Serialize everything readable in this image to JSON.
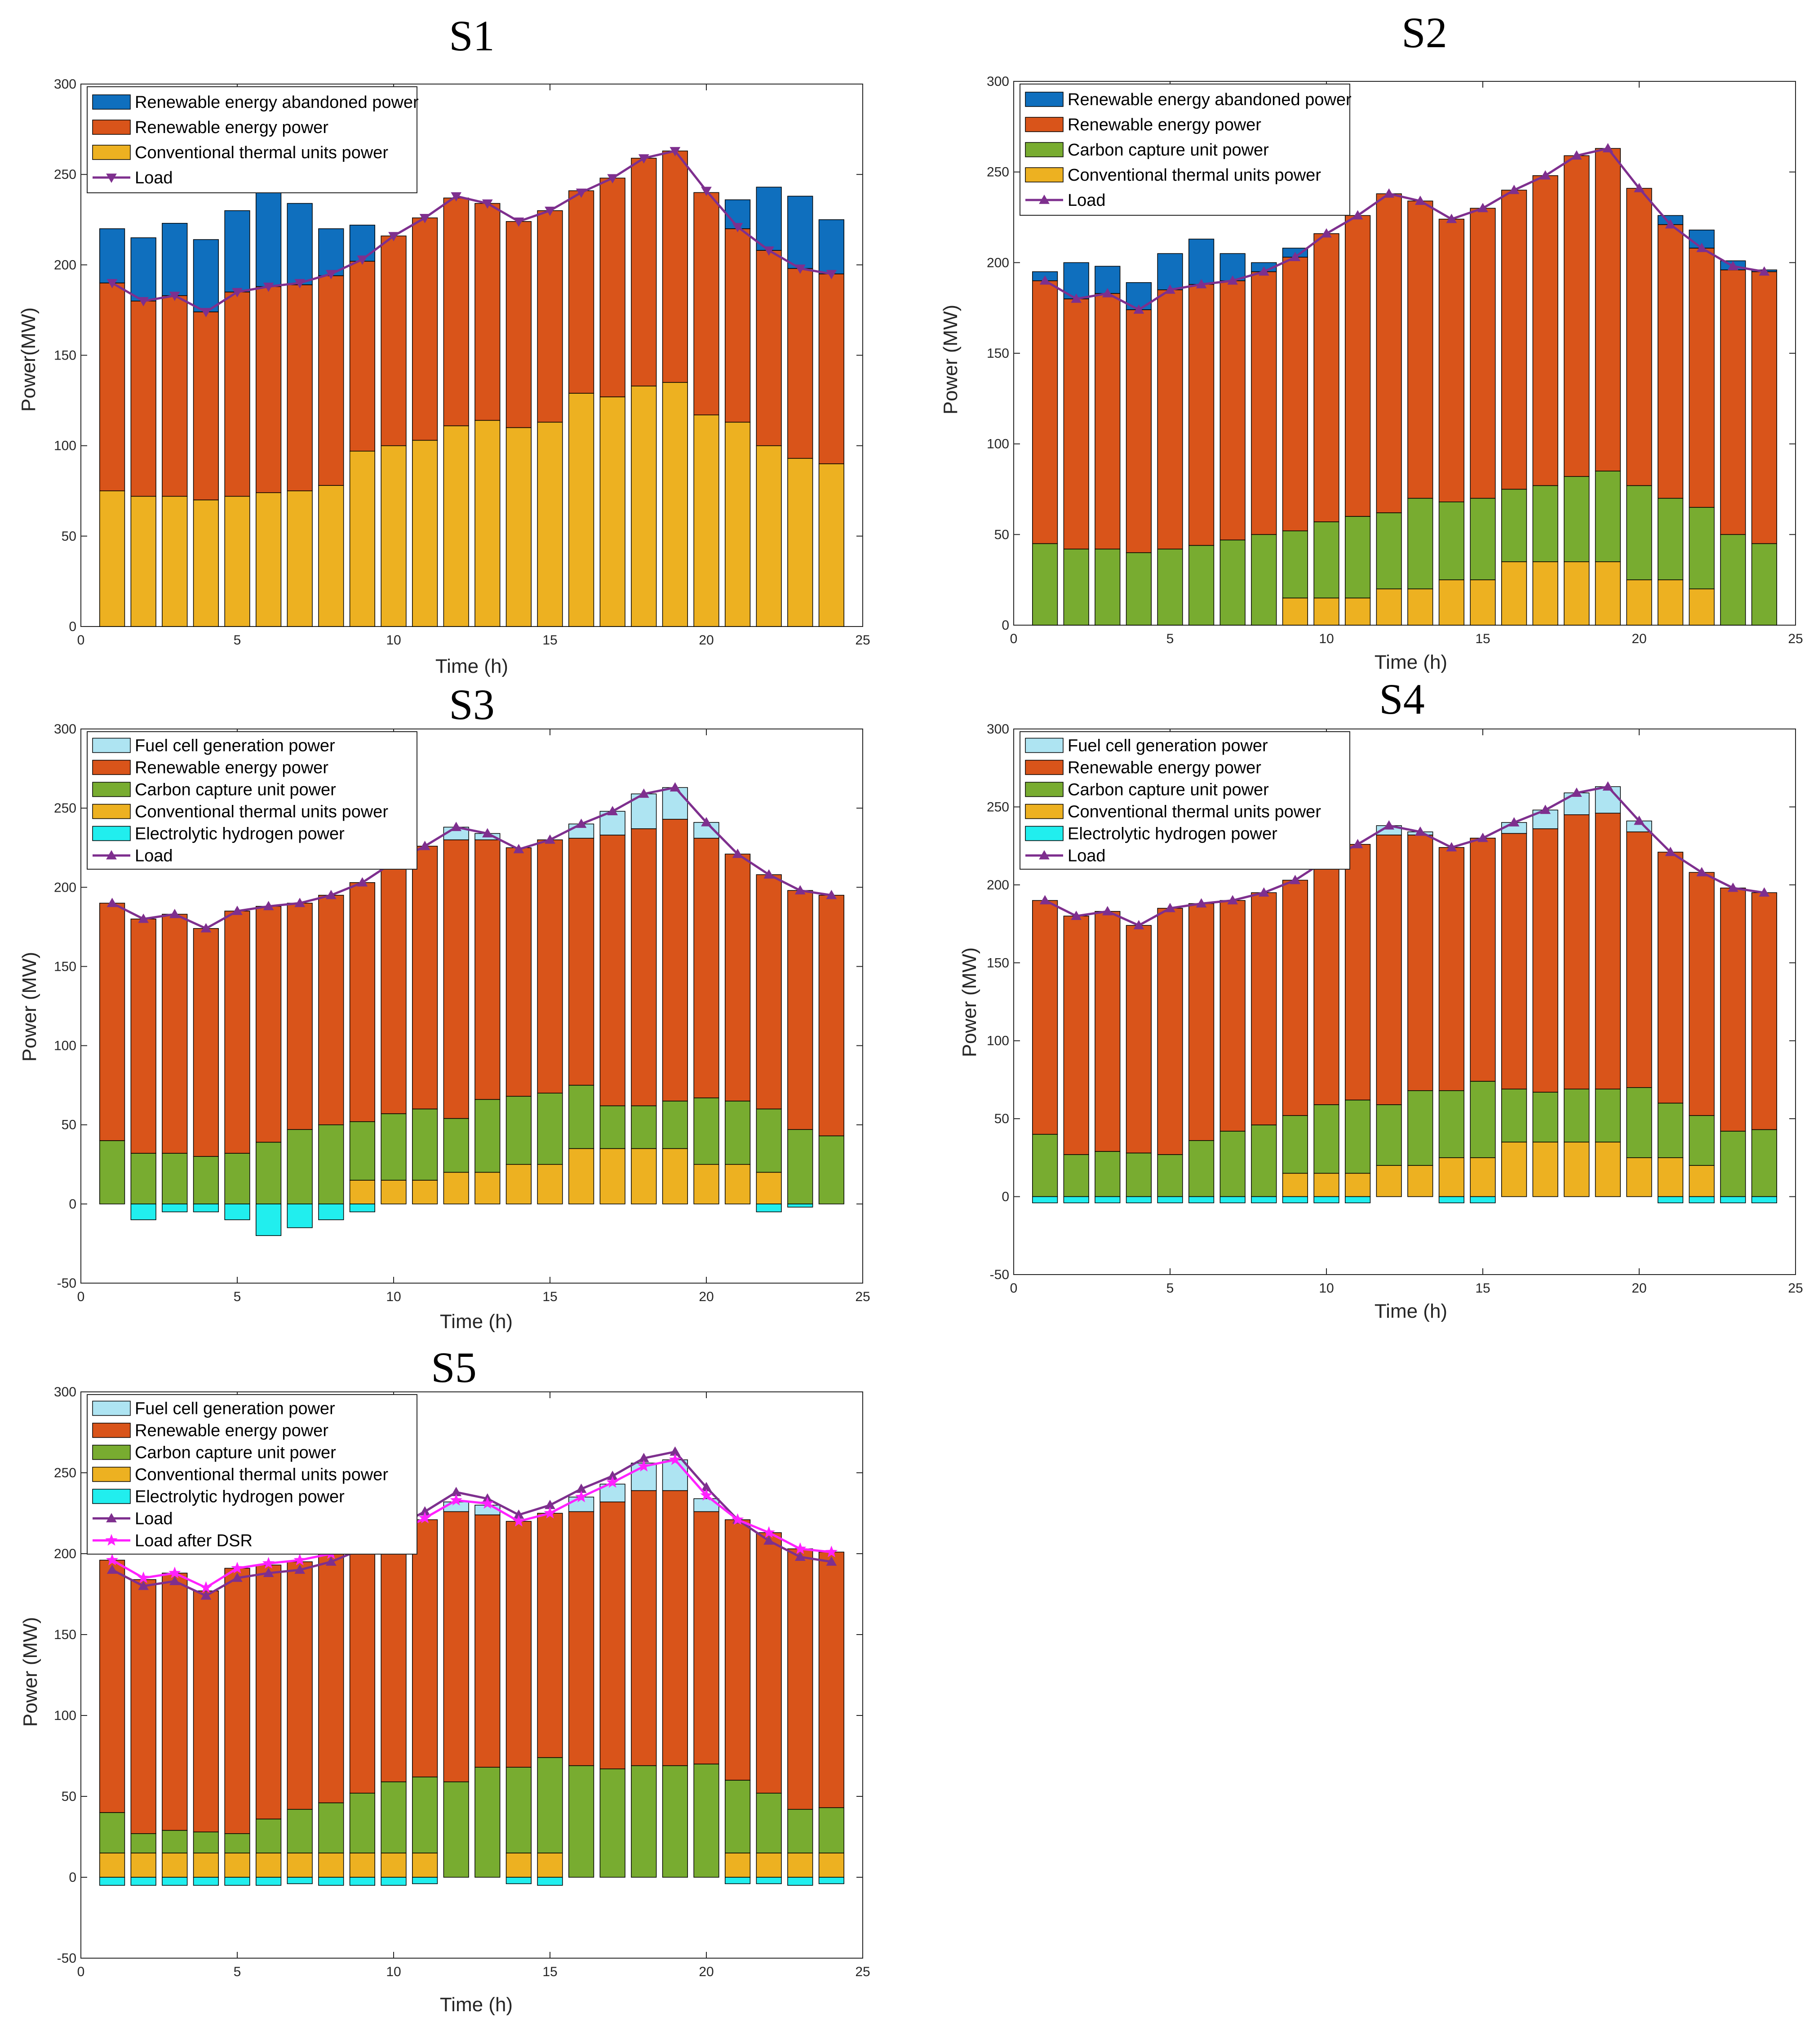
{
  "colors": {
    "abandoned": "#0f6fbe",
    "renewable": "#d9541a",
    "carbon": "#78ac30",
    "thermal": "#edb121",
    "fuelcell": "#aee4f2",
    "electro": "#21eeee",
    "load": "#7e2f8e",
    "dsr": "#ff21ff"
  },
  "chart_data": [
    {
      "type": "bar",
      "title": "S1",
      "xlabel": "Time (h)",
      "ylabel": "Power(MW)",
      "xlim": [
        0,
        25
      ],
      "ylim": [
        0,
        300
      ],
      "xticks": [
        0,
        5,
        10,
        15,
        20,
        25
      ],
      "yticks": [
        0,
        50,
        100,
        150,
        200,
        250,
        300
      ],
      "x": [
        1,
        2,
        3,
        4,
        5,
        6,
        7,
        8,
        9,
        10,
        11,
        12,
        13,
        14,
        15,
        16,
        17,
        18,
        19,
        20,
        21,
        22,
        23,
        24
      ],
      "series": [
        {
          "key": "thermal",
          "name": "Conventional thermal units power",
          "values": [
            75,
            72,
            72,
            70,
            72,
            74,
            75,
            78,
            97,
            100,
            103,
            111,
            114,
            110,
            113,
            129,
            127,
            133,
            135,
            117,
            113,
            100,
            93,
            90
          ]
        },
        {
          "key": "renewable",
          "name": "Renewable energy power",
          "values": [
            115,
            108,
            111,
            104,
            113,
            114,
            114,
            116,
            105,
            116,
            123,
            126,
            120,
            114,
            117,
            112,
            121,
            126,
            128,
            123,
            107,
            108,
            105,
            105
          ]
        },
        {
          "key": "abandoned",
          "name": "Renewable energy abandoned power",
          "values": [
            30,
            35,
            40,
            40,
            45,
            52,
            45,
            26,
            20,
            0,
            0,
            0,
            0,
            0,
            0,
            0,
            0,
            0,
            0,
            0,
            16,
            35,
            40,
            30
          ]
        }
      ],
      "lines": [
        {
          "key": "load",
          "name": "Load",
          "marker": "tri-down",
          "values": [
            190,
            180,
            183,
            174,
            185,
            188,
            190,
            195,
            203,
            216,
            226,
            238,
            234,
            224,
            230,
            240,
            248,
            259,
            263,
            241,
            221,
            208,
            198,
            195
          ]
        }
      ],
      "legend": [
        "abandoned",
        "renewable",
        "thermal",
        "load"
      ]
    },
    {
      "type": "bar",
      "title": "S2",
      "xlabel": "Time (h)",
      "ylabel": "Power (MW)",
      "xlim": [
        0,
        25
      ],
      "ylim": [
        0,
        300
      ],
      "xticks": [
        0,
        5,
        10,
        15,
        20,
        25
      ],
      "yticks": [
        0,
        50,
        100,
        150,
        200,
        250,
        300
      ],
      "x": [
        1,
        2,
        3,
        4,
        5,
        6,
        7,
        8,
        9,
        10,
        11,
        12,
        13,
        14,
        15,
        16,
        17,
        18,
        19,
        20,
        21,
        22,
        23,
        24
      ],
      "series": [
        {
          "key": "thermal",
          "name": "Conventional thermal units power",
          "values": [
            0,
            0,
            0,
            0,
            0,
            0,
            0,
            0,
            15,
            15,
            15,
            20,
            20,
            25,
            25,
            35,
            35,
            35,
            35,
            25,
            25,
            20,
            0,
            0
          ]
        },
        {
          "key": "carbon",
          "name": "Carbon capture unit power",
          "values": [
            45,
            42,
            42,
            40,
            42,
            44,
            47,
            50,
            37,
            42,
            45,
            42,
            50,
            43,
            45,
            40,
            42,
            47,
            50,
            52,
            45,
            45,
            50,
            45
          ]
        },
        {
          "key": "renewable",
          "name": "Renewable energy power",
          "values": [
            145,
            138,
            141,
            134,
            143,
            144,
            143,
            145,
            151,
            159,
            166,
            176,
            164,
            156,
            160,
            165,
            171,
            177,
            178,
            164,
            151,
            143,
            146,
            150
          ]
        },
        {
          "key": "abandoned",
          "name": "Renewable energy abandoned power",
          "values": [
            5,
            20,
            15,
            15,
            20,
            25,
            15,
            5,
            5,
            0,
            0,
            0,
            0,
            0,
            0,
            0,
            0,
            0,
            0,
            0,
            5,
            10,
            5,
            1
          ]
        }
      ],
      "lines": [
        {
          "key": "load",
          "name": "Load",
          "marker": "tri-up",
          "values": [
            190,
            180,
            183,
            174,
            185,
            188,
            190,
            195,
            203,
            216,
            226,
            238,
            234,
            224,
            230,
            240,
            248,
            259,
            263,
            241,
            221,
            208,
            198,
            195
          ]
        }
      ],
      "legend": [
        "abandoned",
        "renewable",
        "carbon",
        "thermal",
        "load"
      ]
    },
    {
      "type": "bar",
      "title": "S3",
      "xlabel": "Time (h)",
      "ylabel": "Power (MW)",
      "xlim": [
        0,
        25
      ],
      "ylim": [
        -50,
        300
      ],
      "xticks": [
        0,
        5,
        10,
        15,
        20,
        25
      ],
      "yticks": [
        -50,
        0,
        50,
        100,
        150,
        200,
        250,
        300
      ],
      "x": [
        1,
        2,
        3,
        4,
        5,
        6,
        7,
        8,
        9,
        10,
        11,
        12,
        13,
        14,
        15,
        16,
        17,
        18,
        19,
        20,
        21,
        22,
        23,
        24
      ],
      "series": [
        {
          "key": "thermal",
          "name": "Conventional thermal units power",
          "values": [
            0,
            0,
            0,
            0,
            0,
            0,
            0,
            0,
            15,
            15,
            15,
            20,
            20,
            25,
            25,
            35,
            35,
            35,
            35,
            25,
            25,
            20,
            0,
            0
          ]
        },
        {
          "key": "carbon",
          "name": "Carbon capture unit power",
          "values": [
            40,
            32,
            32,
            30,
            32,
            39,
            47,
            50,
            37,
            42,
            45,
            34,
            46,
            43,
            45,
            40,
            27,
            27,
            30,
            42,
            40,
            40,
            47,
            43
          ]
        },
        {
          "key": "renewable",
          "name": "Renewable energy power",
          "values": [
            150,
            148,
            151,
            144,
            153,
            149,
            143,
            145,
            151,
            159,
            166,
            176,
            164,
            157,
            160,
            156,
            171,
            175,
            178,
            164,
            156,
            148,
            151,
            152
          ]
        },
        {
          "key": "fuelcell",
          "name": "Fuel cell generation power",
          "values": [
            0,
            0,
            0,
            0,
            0,
            0,
            0,
            0,
            0,
            0,
            0,
            8,
            4,
            0,
            0,
            9,
            15,
            22,
            20,
            10,
            0,
            0,
            0,
            0
          ]
        },
        {
          "key": "electro",
          "name": "Electrolytic hydrogen power",
          "values": [
            0,
            -10,
            -5,
            -5,
            -10,
            -20,
            -15,
            -10,
            -5,
            0,
            0,
            0,
            0,
            0,
            0,
            0,
            0,
            0,
            0,
            0,
            0,
            -5,
            -2,
            0
          ]
        }
      ],
      "lines": [
        {
          "key": "load",
          "name": "Load",
          "marker": "tri-up",
          "values": [
            190,
            180,
            183,
            174,
            185,
            188,
            190,
            195,
            203,
            216,
            226,
            238,
            234,
            224,
            230,
            240,
            248,
            259,
            263,
            241,
            221,
            208,
            198,
            195
          ]
        }
      ],
      "legend": [
        "fuelcell",
        "renewable",
        "carbon",
        "thermal",
        "electro",
        "load"
      ]
    },
    {
      "type": "bar",
      "title": "S4",
      "xlabel": "Time (h)",
      "ylabel": "Power (MW)",
      "xlim": [
        0,
        25
      ],
      "ylim": [
        -50,
        300
      ],
      "xticks": [
        0,
        5,
        10,
        15,
        20,
        25
      ],
      "yticks": [
        -50,
        0,
        50,
        100,
        150,
        200,
        250,
        300
      ],
      "x": [
        1,
        2,
        3,
        4,
        5,
        6,
        7,
        8,
        9,
        10,
        11,
        12,
        13,
        14,
        15,
        16,
        17,
        18,
        19,
        20,
        21,
        22,
        23,
        24
      ],
      "series": [
        {
          "key": "thermal",
          "name": "Conventional thermal units power",
          "values": [
            0,
            0,
            0,
            0,
            0,
            0,
            0,
            0,
            15,
            15,
            15,
            20,
            20,
            25,
            25,
            35,
            35,
            35,
            35,
            25,
            25,
            20,
            0,
            0
          ]
        },
        {
          "key": "carbon",
          "name": "Carbon capture unit power",
          "values": [
            40,
            27,
            29,
            28,
            27,
            36,
            42,
            46,
            37,
            44,
            47,
            39,
            48,
            43,
            49,
            34,
            32,
            34,
            34,
            45,
            35,
            32,
            42,
            43
          ]
        },
        {
          "key": "renewable",
          "name": "Renewable energy power",
          "values": [
            150,
            153,
            154,
            146,
            158,
            152,
            148,
            149,
            151,
            157,
            164,
            173,
            164,
            156,
            156,
            164,
            169,
            176,
            177,
            164,
            161,
            156,
            156,
            152
          ]
        },
        {
          "key": "fuelcell",
          "name": "Fuel cell generation power",
          "values": [
            0,
            0,
            0,
            0,
            0,
            0,
            0,
            0,
            0,
            0,
            0,
            6,
            2,
            0,
            0,
            7,
            12,
            14,
            17,
            7,
            0,
            0,
            0,
            0
          ]
        },
        {
          "key": "electro",
          "name": "Electrolytic hydrogen power",
          "values": [
            -4,
            -4,
            -4,
            -4,
            -4,
            -4,
            -4,
            -4,
            -4,
            -4,
            -4,
            0,
            0,
            -4,
            -4,
            0,
            0,
            0,
            0,
            0,
            -4,
            -4,
            -4,
            -4
          ]
        }
      ],
      "lines": [
        {
          "key": "load",
          "name": "Load",
          "marker": "tri-up",
          "values": [
            190,
            180,
            183,
            174,
            185,
            188,
            190,
            195,
            203,
            216,
            226,
            238,
            234,
            224,
            230,
            240,
            248,
            259,
            263,
            241,
            221,
            208,
            198,
            195
          ]
        }
      ],
      "legend": [
        "fuelcell",
        "renewable",
        "carbon",
        "thermal",
        "electro",
        "load"
      ]
    },
    {
      "type": "bar",
      "title": "S5",
      "xlabel": "Time (h)",
      "ylabel": "Power (MW)",
      "xlim": [
        0,
        25
      ],
      "ylim": [
        -50,
        300
      ],
      "xticks": [
        0,
        5,
        10,
        15,
        20,
        25
      ],
      "yticks": [
        -50,
        0,
        50,
        100,
        150,
        200,
        250,
        300
      ],
      "x": [
        1,
        2,
        3,
        4,
        5,
        6,
        7,
        8,
        9,
        10,
        11,
        12,
        13,
        14,
        15,
        16,
        17,
        18,
        19,
        20,
        21,
        22,
        23,
        24
      ],
      "series": [
        {
          "key": "thermal",
          "name": "Conventional thermal units power",
          "values": [
            15,
            15,
            15,
            15,
            15,
            15,
            15,
            15,
            15,
            15,
            15,
            0,
            0,
            15,
            15,
            0,
            0,
            0,
            0,
            0,
            15,
            15,
            15,
            15
          ]
        },
        {
          "key": "carbon",
          "name": "Carbon capture unit power",
          "values": [
            25,
            12,
            14,
            13,
            12,
            21,
            27,
            31,
            37,
            44,
            47,
            59,
            68,
            53,
            59,
            69,
            67,
            69,
            69,
            70,
            45,
            37,
            27,
            28
          ]
        },
        {
          "key": "renewable",
          "name": "Renewable energy power",
          "values": [
            156,
            157,
            159,
            149,
            164,
            157,
            153,
            154,
            151,
            153,
            159,
            167,
            156,
            152,
            151,
            157,
            165,
            170,
            170,
            156,
            161,
            161,
            161,
            158
          ]
        },
        {
          "key": "fuelcell",
          "name": "Fuel cell generation power",
          "values": [
            0,
            0,
            0,
            0,
            0,
            0,
            0,
            0,
            0,
            0,
            0,
            6,
            6,
            0,
            0,
            9,
            11,
            17,
            19,
            8,
            0,
            0,
            0,
            0
          ]
        },
        {
          "key": "electro",
          "name": "Electrolytic hydrogen power",
          "values": [
            -5,
            -5,
            -5,
            -5,
            -5,
            -5,
            -4,
            -5,
            -5,
            -5,
            -4,
            0,
            0,
            -4,
            -5,
            0,
            0,
            0,
            0,
            0,
            -4,
            -4,
            -5,
            -4
          ]
        }
      ],
      "lines": [
        {
          "key": "load",
          "name": "Load",
          "marker": "tri-up",
          "values": [
            190,
            180,
            183,
            174,
            185,
            188,
            190,
            195,
            203,
            216,
            226,
            238,
            234,
            224,
            230,
            240,
            248,
            259,
            263,
            241,
            221,
            208,
            198,
            195
          ]
        },
        {
          "key": "dsr",
          "name": "Load after DSR",
          "marker": "star",
          "values": [
            196,
            185,
            188,
            179,
            191,
            194,
            196,
            200,
            203,
            212,
            222,
            233,
            231,
            220,
            225,
            235,
            244,
            254,
            258,
            236,
            221,
            213,
            203,
            201
          ]
        }
      ],
      "legend": [
        "fuelcell",
        "renewable",
        "carbon",
        "thermal",
        "electro",
        "load",
        "dsr"
      ]
    }
  ]
}
